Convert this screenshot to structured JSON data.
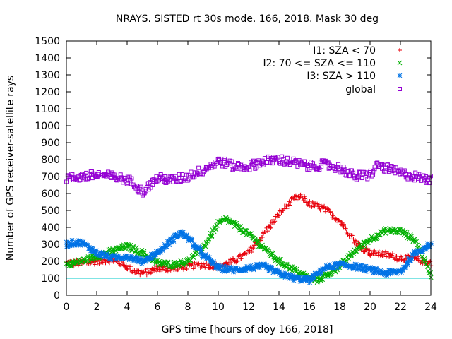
{
  "chart_data": {
    "type": "scatter",
    "title": "NRAYS. SISTED rt 30s mode. 166, 2018. Mask 30 deg",
    "xlabel": "GPS time [hours of doy 166, 2018]",
    "ylabel": "Number of GPS receiver-satellite rays",
    "xlim": [
      0,
      24
    ],
    "ylim": [
      0,
      1500
    ],
    "xticks": [
      "0",
      "2",
      "4",
      "6",
      "8",
      "10",
      "12",
      "14",
      "16",
      "18",
      "20",
      "22",
      "24"
    ],
    "yticks": [
      "0",
      "100",
      "200",
      "300",
      "400",
      "500",
      "600",
      "700",
      "800",
      "900",
      "1000",
      "1100",
      "1200",
      "1300",
      "1400",
      "1500"
    ],
    "grid": false,
    "legend_position": "top-right",
    "threshold_line": {
      "y": 100,
      "color": "#00c8c8"
    },
    "series": [
      {
        "name": "I1: SZA < 70",
        "marker": "+",
        "color": "#e8000b",
        "x": [
          0,
          1,
          2,
          3,
          4,
          4.5,
          5,
          5.5,
          6,
          7,
          8,
          9,
          10,
          11,
          12,
          13,
          14,
          15,
          15.5,
          16,
          17,
          18,
          19,
          19.5,
          20,
          21,
          22,
          23,
          24
        ],
        "y": [
          190,
          190,
          200,
          210,
          170,
          140,
          130,
          140,
          160,
          155,
          170,
          180,
          170,
          200,
          250,
          360,
          480,
          570,
          580,
          540,
          510,
          440,
          320,
          280,
          250,
          240,
          220,
          215,
          190
        ]
      },
      {
        "name": "I2: 70 <= SZA <= 110",
        "marker": "x",
        "color": "#00b000",
        "x": [
          0,
          1,
          2,
          3,
          4,
          5,
          5.5,
          6,
          7,
          8,
          9,
          10,
          10.5,
          11,
          12,
          13,
          14,
          15,
          16,
          16.5,
          17,
          18,
          19,
          20,
          21,
          22,
          23,
          24
        ],
        "y": [
          180,
          200,
          230,
          260,
          290,
          250,
          220,
          190,
          180,
          200,
          280,
          420,
          450,
          420,
          360,
          280,
          200,
          150,
          100,
          90,
          110,
          170,
          260,
          330,
          380,
          380,
          320,
          120
        ]
      },
      {
        "name": "I3: SZA > 110",
        "marker": "*",
        "color": "#0073e6",
        "x": [
          0,
          0.5,
          1,
          2,
          3,
          4,
          5,
          6,
          7,
          7.5,
          8,
          9,
          10,
          11,
          12,
          13,
          14,
          15,
          16,
          17,
          18,
          19,
          20,
          21,
          22,
          23,
          24
        ],
        "y": [
          300,
          310,
          310,
          250,
          220,
          230,
          200,
          250,
          330,
          370,
          340,
          240,
          160,
          150,
          160,
          170,
          130,
          100,
          90,
          160,
          180,
          170,
          150,
          130,
          140,
          250,
          300
        ]
      },
      {
        "name": "global",
        "marker": "square",
        "color": "#9400d3",
        "x": [
          0,
          1,
          2,
          3,
          4,
          4.5,
          5,
          5.5,
          6,
          7,
          8,
          9,
          10,
          10.5,
          11,
          12,
          13,
          14,
          15,
          16,
          17,
          18,
          19,
          20,
          20.5,
          21,
          22,
          23,
          24
        ],
        "y": [
          690,
          700,
          710,
          700,
          680,
          660,
          610,
          650,
          690,
          680,
          700,
          740,
          790,
          780,
          760,
          760,
          790,
          800,
          780,
          760,
          770,
          750,
          700,
          710,
          770,
          750,
          720,
          700,
          680
        ]
      }
    ]
  }
}
